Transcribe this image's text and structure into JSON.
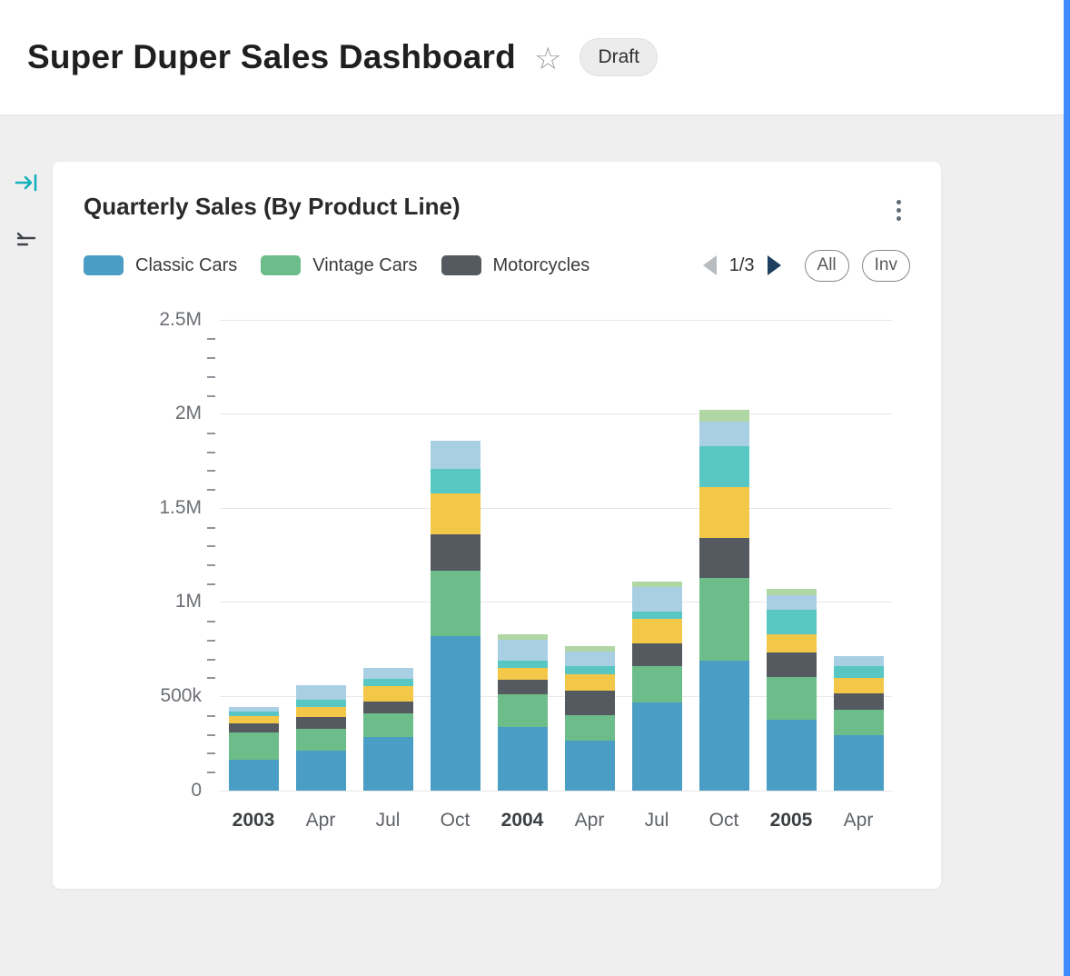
{
  "header": {
    "title": "Super Duper Sales Dashboard",
    "badge": "Draft"
  },
  "side_toolbar": {
    "icons": [
      "collapse-panel-icon",
      "filter-icon"
    ]
  },
  "card": {
    "title": "Quarterly Sales (By Product Line)",
    "legend": [
      {
        "label": "Classic Cars",
        "color": "#4a9dc4"
      },
      {
        "label": "Vintage Cars",
        "color": "#6cbd89"
      },
      {
        "label": "Motorcycles",
        "color": "#555a60"
      }
    ],
    "pagination": {
      "current": "1/3"
    },
    "buttons": [
      {
        "label": "All"
      },
      {
        "label": "Inv"
      }
    ]
  },
  "colors": {
    "accent_teal": "#14b0bb",
    "pager_next": "#1e3f5e",
    "pager_prev": "#b9bcbf",
    "scrollbar_blue": "#3f8cff"
  },
  "chart_data": {
    "type": "bar",
    "stacked": true,
    "title": "Quarterly Sales (By Product Line)",
    "categories": [
      "2003",
      "Apr",
      "Jul",
      "Oct",
      "2004",
      "Apr",
      "Jul",
      "Oct",
      "2005",
      "Apr"
    ],
    "ylim": [
      0,
      2500000
    ],
    "yticks": [
      {
        "value": 0,
        "label": "0"
      },
      {
        "value": 500000,
        "label": "500k"
      },
      {
        "value": 1000000,
        "label": "1M"
      },
      {
        "value": 1500000,
        "label": "1.5M"
      },
      {
        "value": 2000000,
        "label": "2M"
      },
      {
        "value": 2500000,
        "label": "2.5M"
      }
    ],
    "grid": true,
    "legend_position": "top",
    "series": [
      {
        "name": "Classic Cars",
        "color": "#4a9dc4",
        "values": [
          165000,
          210000,
          285000,
          820000,
          340000,
          265000,
          470000,
          690000,
          375000,
          295000
        ]
      },
      {
        "name": "Vintage Cars",
        "color": "#6cbd89",
        "values": [
          145000,
          120000,
          125000,
          350000,
          170000,
          135000,
          190000,
          440000,
          230000,
          135000
        ]
      },
      {
        "name": "Motorcycles",
        "color": "#555a60",
        "values": [
          45000,
          60000,
          65000,
          190000,
          80000,
          130000,
          120000,
          210000,
          130000,
          85000
        ]
      },
      {
        "name": "unlabeled-yellow",
        "color": "#f3c748",
        "values": [
          40000,
          55000,
          80000,
          220000,
          60000,
          90000,
          130000,
          270000,
          95000,
          85000
        ]
      },
      {
        "name": "unlabeled-teal",
        "color": "#58c7c3",
        "values": [
          25000,
          40000,
          40000,
          130000,
          40000,
          40000,
          40000,
          220000,
          130000,
          60000
        ]
      },
      {
        "name": "unlabeled-light-blue",
        "color": "#a9cfe5",
        "values": [
          25000,
          75000,
          55000,
          150000,
          110000,
          80000,
          130000,
          130000,
          80000,
          55000
        ]
      },
      {
        "name": "unlabeled-pale-green",
        "color": "#b0d6a3",
        "values": [
          0,
          0,
          0,
          0,
          30000,
          25000,
          30000,
          60000,
          30000,
          0
        ]
      }
    ]
  }
}
